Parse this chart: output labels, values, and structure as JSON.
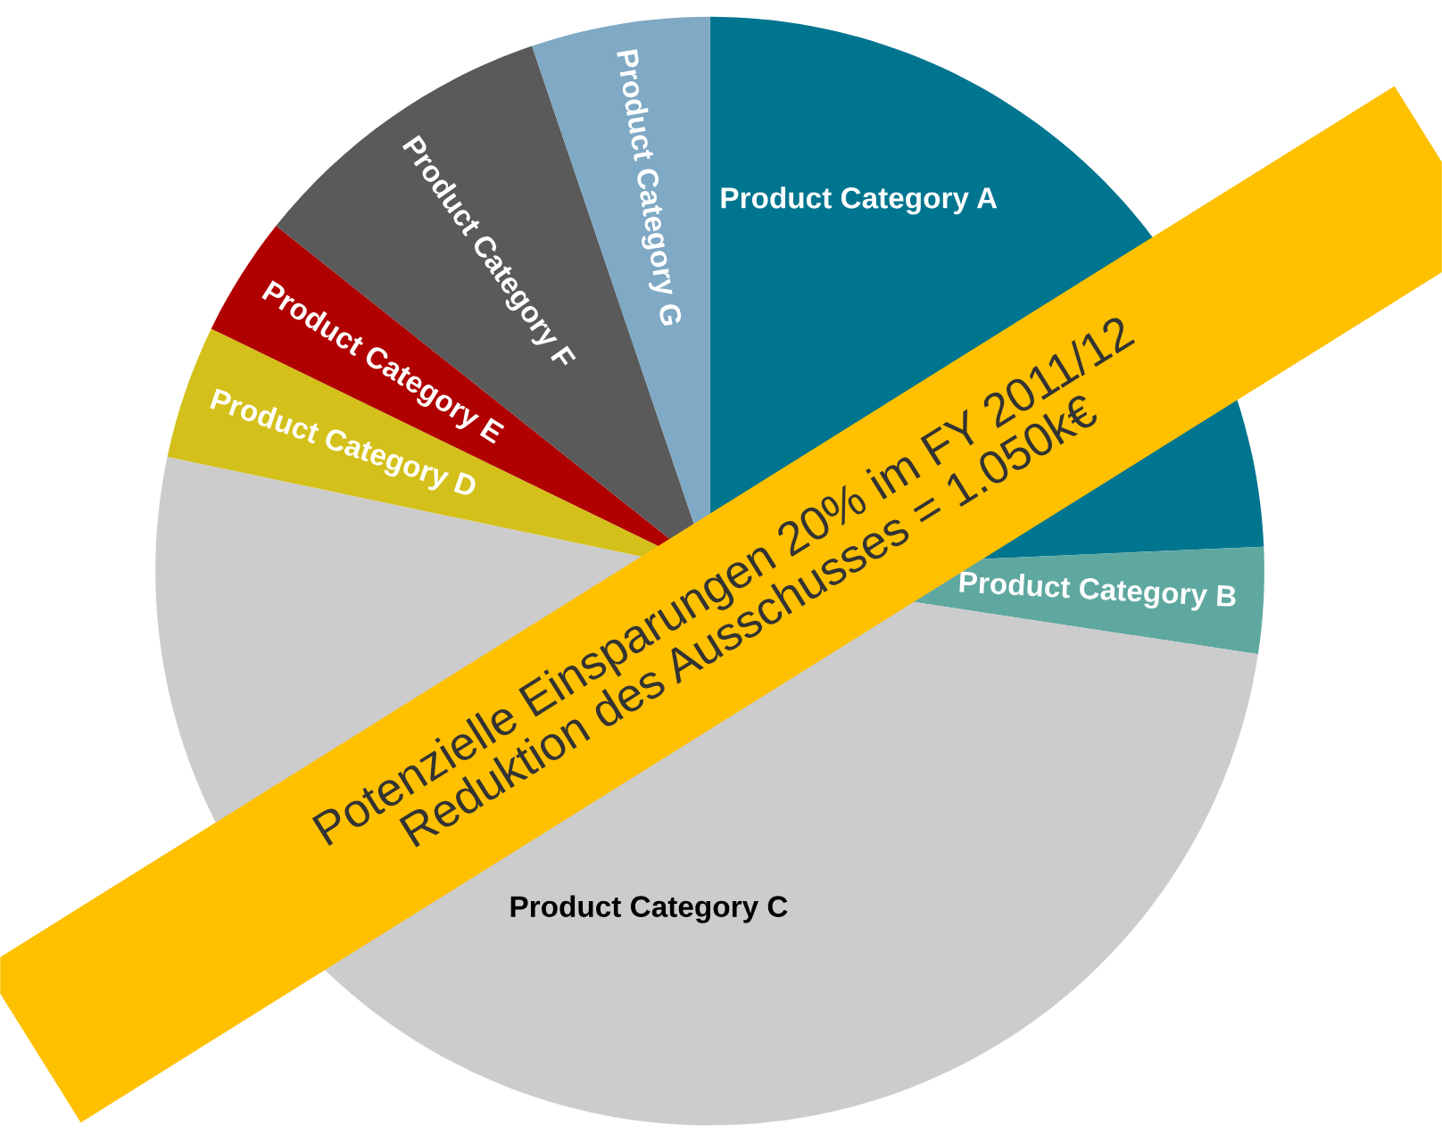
{
  "chart_data": {
    "type": "pie",
    "categories": [
      "Product Category A",
      "Product Category B",
      "Product Category C",
      "Product Category D",
      "Product Category E",
      "Product Category F",
      "Product Category G"
    ],
    "values": [
      24.3,
      3.1,
      50.9,
      3.9,
      3.5,
      9.1,
      5.2
    ],
    "colors": [
      "#00758f",
      "#5fa8a0",
      "#cccccc",
      "#d4c01a",
      "#b00000",
      "#5a5a5a",
      "#7fa9c4"
    ],
    "annotations": [
      "Potenzielle Einsparungen 20% im FY 2011/12\nReduktion des Ausschusses = 1.050k€"
    ]
  }
}
